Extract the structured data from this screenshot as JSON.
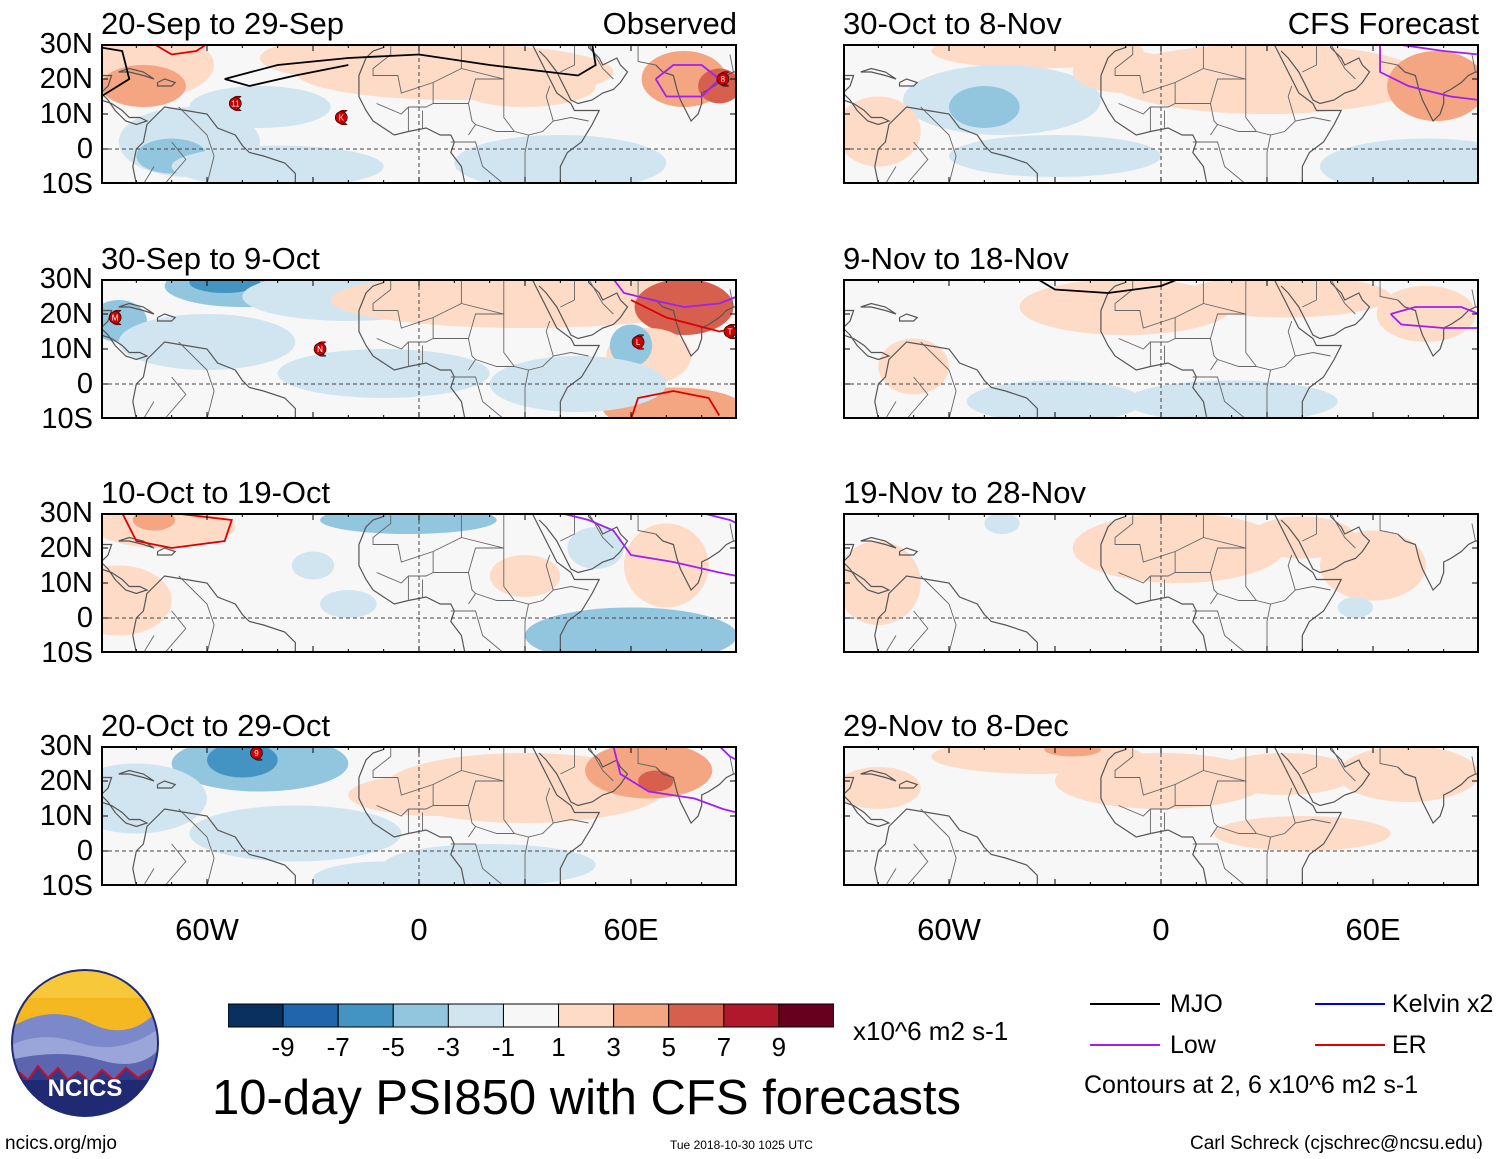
{
  "panels_left": [
    {
      "title": "20-Sep to 29-Sep",
      "tag": "Observed"
    },
    {
      "title": "30-Sep to 9-Oct",
      "tag": ""
    },
    {
      "title": "10-Oct to 19-Oct",
      "tag": ""
    },
    {
      "title": "20-Oct to 29-Oct",
      "tag": ""
    }
  ],
  "panels_right": [
    {
      "title": "30-Oct to 8-Nov",
      "tag": "CFS Forecast"
    },
    {
      "title": "9-Nov to 18-Nov",
      "tag": ""
    },
    {
      "title": "19-Nov to 28-Nov",
      "tag": ""
    },
    {
      "title": "29-Nov to 8-Dec",
      "tag": ""
    }
  ],
  "lat_labels": [
    "30N",
    "20N",
    "10N",
    "0",
    "10S"
  ],
  "lon_labels": [
    "60W",
    "0",
    "60E"
  ],
  "colorbar": {
    "tick_labels": [
      "-9",
      "-7",
      "-5",
      "-3",
      "-1",
      "1",
      "3",
      "5",
      "7",
      "9"
    ],
    "colors": [
      "#0a3060",
      "#2166ac",
      "#4393c3",
      "#92c5de",
      "#d1e5f0",
      "#f7f7f7",
      "#fddbc7",
      "#f4a582",
      "#d6604d",
      "#b2182b",
      "#67001f"
    ],
    "units": "x10^6 m2 s-1"
  },
  "title": "10-day PSI850 with CFS forecasts",
  "legend": {
    "items": [
      {
        "label": "MJO",
        "color": "#000000"
      },
      {
        "label": "Kelvin x2",
        "color": "#0000dd"
      },
      {
        "label": "Low",
        "color": "#a020f0"
      },
      {
        "label": "ER",
        "color": "#dd0000"
      }
    ],
    "contours_note": "Contours at 2, 6 x10^6 m2 s-1"
  },
  "logo_text": "NCICS",
  "footer": {
    "url": "ncics.org/mjo",
    "timestamp": "Tue 2018-10-30 1025 UTC",
    "credit": "Carl Schreck (cjschrec@ncsu.edu)"
  },
  "storm_markers": [
    {
      "panel": 0,
      "label": "11"
    },
    {
      "panel": 0,
      "label": "K"
    },
    {
      "panel": 0,
      "label": "8"
    },
    {
      "panel": 1,
      "label": "M"
    },
    {
      "panel": 1,
      "label": "N"
    },
    {
      "panel": 1,
      "label": "L"
    },
    {
      "panel": 1,
      "label": "T"
    },
    {
      "panel": 3,
      "label": "9"
    }
  ]
}
